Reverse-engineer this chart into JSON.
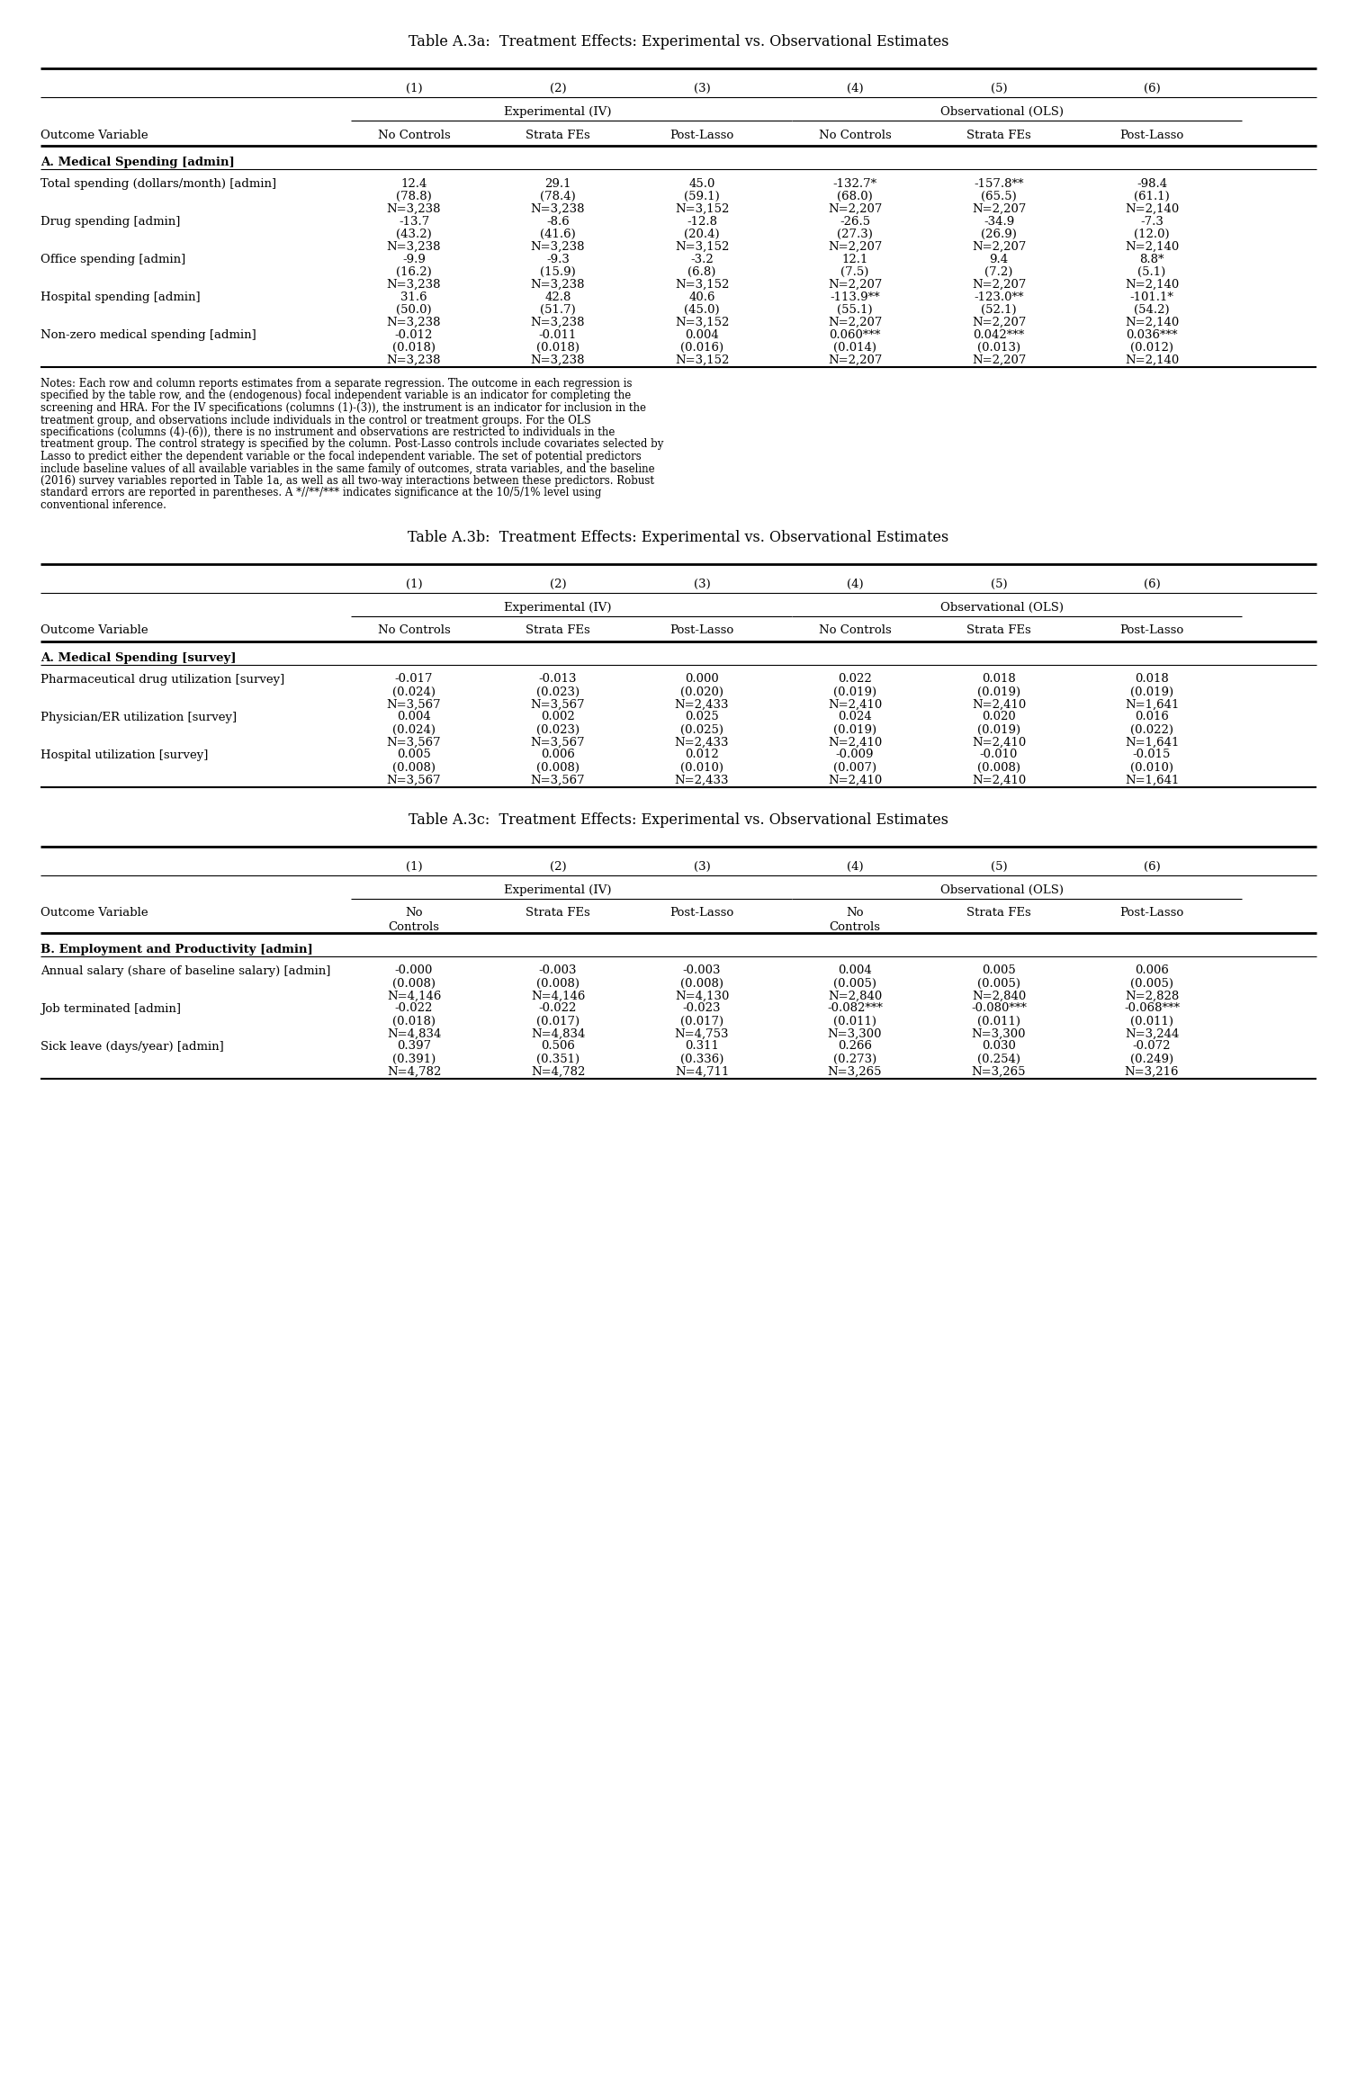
{
  "title_a": "Table A.3a:  Treatment Effects: Experimental vs. Observational Estimates",
  "title_b": "Table A.3b:  Treatment Effects: Experimental vs. Observational Estimates",
  "title_c": "Table A.3c:  Treatment Effects: Experimental vs. Observational Estimates",
  "col_numbers": [
    "(1)",
    "(2)",
    "(3)",
    "(4)",
    "(5)",
    "(6)"
  ],
  "group_labels": [
    "Experimental (IV)",
    "Observational (OLS)"
  ],
  "col_headers": [
    "No Controls",
    "Strata FEs",
    "Post-Lasso",
    "No Controls",
    "Strata FEs",
    "Post-Lasso"
  ],
  "outcome_var_label": "Outcome Variable",
  "table_a": {
    "section": "A. Medical Spending [admin]",
    "rows": [
      {
        "label": "Total spending (dollars/month) [admin]",
        "values": [
          "12.4",
          "29.1",
          "45.0",
          "-132.7*",
          "-157.8**",
          "-98.4"
        ],
        "se": [
          "(78.8)",
          "(78.4)",
          "(59.1)",
          "(68.0)",
          "(65.5)",
          "(61.1)"
        ],
        "n": [
          "N=3,238",
          "N=3,238",
          "N=3,152",
          "N=2,207",
          "N=2,207",
          "N=2,140"
        ]
      },
      {
        "label": "Drug spending [admin]",
        "values": [
          "-13.7",
          "-8.6",
          "-12.8",
          "-26.5",
          "-34.9",
          "-7.3"
        ],
        "se": [
          "(43.2)",
          "(41.6)",
          "(20.4)",
          "(27.3)",
          "(26.9)",
          "(12.0)"
        ],
        "n": [
          "N=3,238",
          "N=3,238",
          "N=3,152",
          "N=2,207",
          "N=2,207",
          "N=2,140"
        ]
      },
      {
        "label": "Office spending [admin]",
        "values": [
          "-9.9",
          "-9.3",
          "-3.2",
          "12.1",
          "9.4",
          "8.8*"
        ],
        "se": [
          "(16.2)",
          "(15.9)",
          "(6.8)",
          "(7.5)",
          "(7.2)",
          "(5.1)"
        ],
        "n": [
          "N=3,238",
          "N=3,238",
          "N=3,152",
          "N=2,207",
          "N=2,207",
          "N=2,140"
        ]
      },
      {
        "label": "Hospital spending [admin]",
        "values": [
          "31.6",
          "42.8",
          "40.6",
          "-113.9**",
          "-123.0**",
          "-101.1*"
        ],
        "se": [
          "(50.0)",
          "(51.7)",
          "(45.0)",
          "(55.1)",
          "(52.1)",
          "(54.2)"
        ],
        "n": [
          "N=3,238",
          "N=3,238",
          "N=3,152",
          "N=2,207",
          "N=2,207",
          "N=2,140"
        ]
      },
      {
        "label": "Non-zero medical spending [admin]",
        "values": [
          "-0.012",
          "-0.011",
          "0.004",
          "0.060***",
          "0.042***",
          "0.036***"
        ],
        "se": [
          "(0.018)",
          "(0.018)",
          "(0.016)",
          "(0.014)",
          "(0.013)",
          "(0.012)"
        ],
        "n": [
          "N=3,238",
          "N=3,238",
          "N=3,152",
          "N=2,207",
          "N=2,207",
          "N=2,140"
        ]
      }
    ]
  },
  "notes_lines": [
    "Notes: Each row and column reports estimates from a separate regression. The outcome in each regression is",
    "specified by the table row, and the (endogenous) focal independent variable is an indicator for completing the",
    "screening and HRA. For the IV specifications (columns (1)-(3)), the instrument is an indicator for inclusion in the",
    "treatment group, and observations include individuals in the control or treatment groups. For the OLS",
    "specifications (columns (4)-(6)), there is no instrument and observations are restricted to individuals in the",
    "treatment group. The control strategy is specified by the column. Post-Lasso controls include covariates selected by",
    "Lasso to predict either the dependent variable or the focal independent variable. The set of potential predictors",
    "include baseline values of all available variables in the same family of outcomes, strata variables, and the baseline",
    "(2016) survey variables reported in Table 1a, as well as all two-way interactions between these predictors. Robust",
    "standard errors are reported in parentheses. A *//**/*** indicates significance at the 10/5/1% level using",
    "conventional inference."
  ],
  "table_b": {
    "section": "A. Medical Spending [survey]",
    "rows": [
      {
        "label": "Pharmaceutical drug utilization [survey]",
        "values": [
          "-0.017",
          "-0.013",
          "0.000",
          "0.022",
          "0.018",
          "0.018"
        ],
        "se": [
          "(0.024)",
          "(0.023)",
          "(0.020)",
          "(0.019)",
          "(0.019)",
          "(0.019)"
        ],
        "n": [
          "N=3,567",
          "N=3,567",
          "N=2,433",
          "N=2,410",
          "N=2,410",
          "N=1,641"
        ]
      },
      {
        "label": "Physician/ER utilization [survey]",
        "values": [
          "0.004",
          "0.002",
          "0.025",
          "0.024",
          "0.020",
          "0.016"
        ],
        "se": [
          "(0.024)",
          "(0.023)",
          "(0.025)",
          "(0.019)",
          "(0.019)",
          "(0.022)"
        ],
        "n": [
          "N=3,567",
          "N=3,567",
          "N=2,433",
          "N=2,410",
          "N=2,410",
          "N=1,641"
        ]
      },
      {
        "label": "Hospital utilization [survey]",
        "values": [
          "0.005",
          "0.006",
          "0.012",
          "-0.009",
          "-0.010",
          "-0.015"
        ],
        "se": [
          "(0.008)",
          "(0.008)",
          "(0.010)",
          "(0.007)",
          "(0.008)",
          "(0.010)"
        ],
        "n": [
          "N=3,567",
          "N=3,567",
          "N=2,433",
          "N=2,410",
          "N=2,410",
          "N=1,641"
        ]
      }
    ]
  },
  "table_c": {
    "section": "B. Employment and Productivity [admin]",
    "col_headers_c": [
      "No\nControls",
      "Strata FEs",
      "Post-Lasso",
      "No\nControls",
      "Strata FEs",
      "Post-Lasso"
    ],
    "rows": [
      {
        "label": "Annual salary (share of baseline salary) [admin]",
        "values": [
          "-0.000",
          "-0.003",
          "-0.003",
          "0.004",
          "0.005",
          "0.006"
        ],
        "se": [
          "(0.008)",
          "(0.008)",
          "(0.008)",
          "(0.005)",
          "(0.005)",
          "(0.005)"
        ],
        "n": [
          "N=4,146",
          "N=4,146",
          "N=4,130",
          "N=2,840",
          "N=2,840",
          "N=2,828"
        ]
      },
      {
        "label": "Job terminated [admin]",
        "values": [
          "-0.022",
          "-0.022",
          "-0.023",
          "-0.082***",
          "-0.080***",
          "-0.068***"
        ],
        "se": [
          "(0.018)",
          "(0.017)",
          "(0.017)",
          "(0.011)",
          "(0.011)",
          "(0.011)"
        ],
        "n": [
          "N=4,834",
          "N=4,834",
          "N=4,753",
          "N=3,300",
          "N=3,300",
          "N=3,244"
        ]
      },
      {
        "label": "Sick leave (days/year) [admin]",
        "values": [
          "0.397",
          "0.506",
          "0.311",
          "0.266",
          "0.030",
          "-0.072"
        ],
        "se": [
          "(0.391)",
          "(0.351)",
          "(0.336)",
          "(0.273)",
          "(0.254)",
          "(0.249)"
        ],
        "n": [
          "N=4,782",
          "N=4,782",
          "N=4,711",
          "N=3,265",
          "N=3,265",
          "N=3,216"
        ]
      }
    ]
  }
}
